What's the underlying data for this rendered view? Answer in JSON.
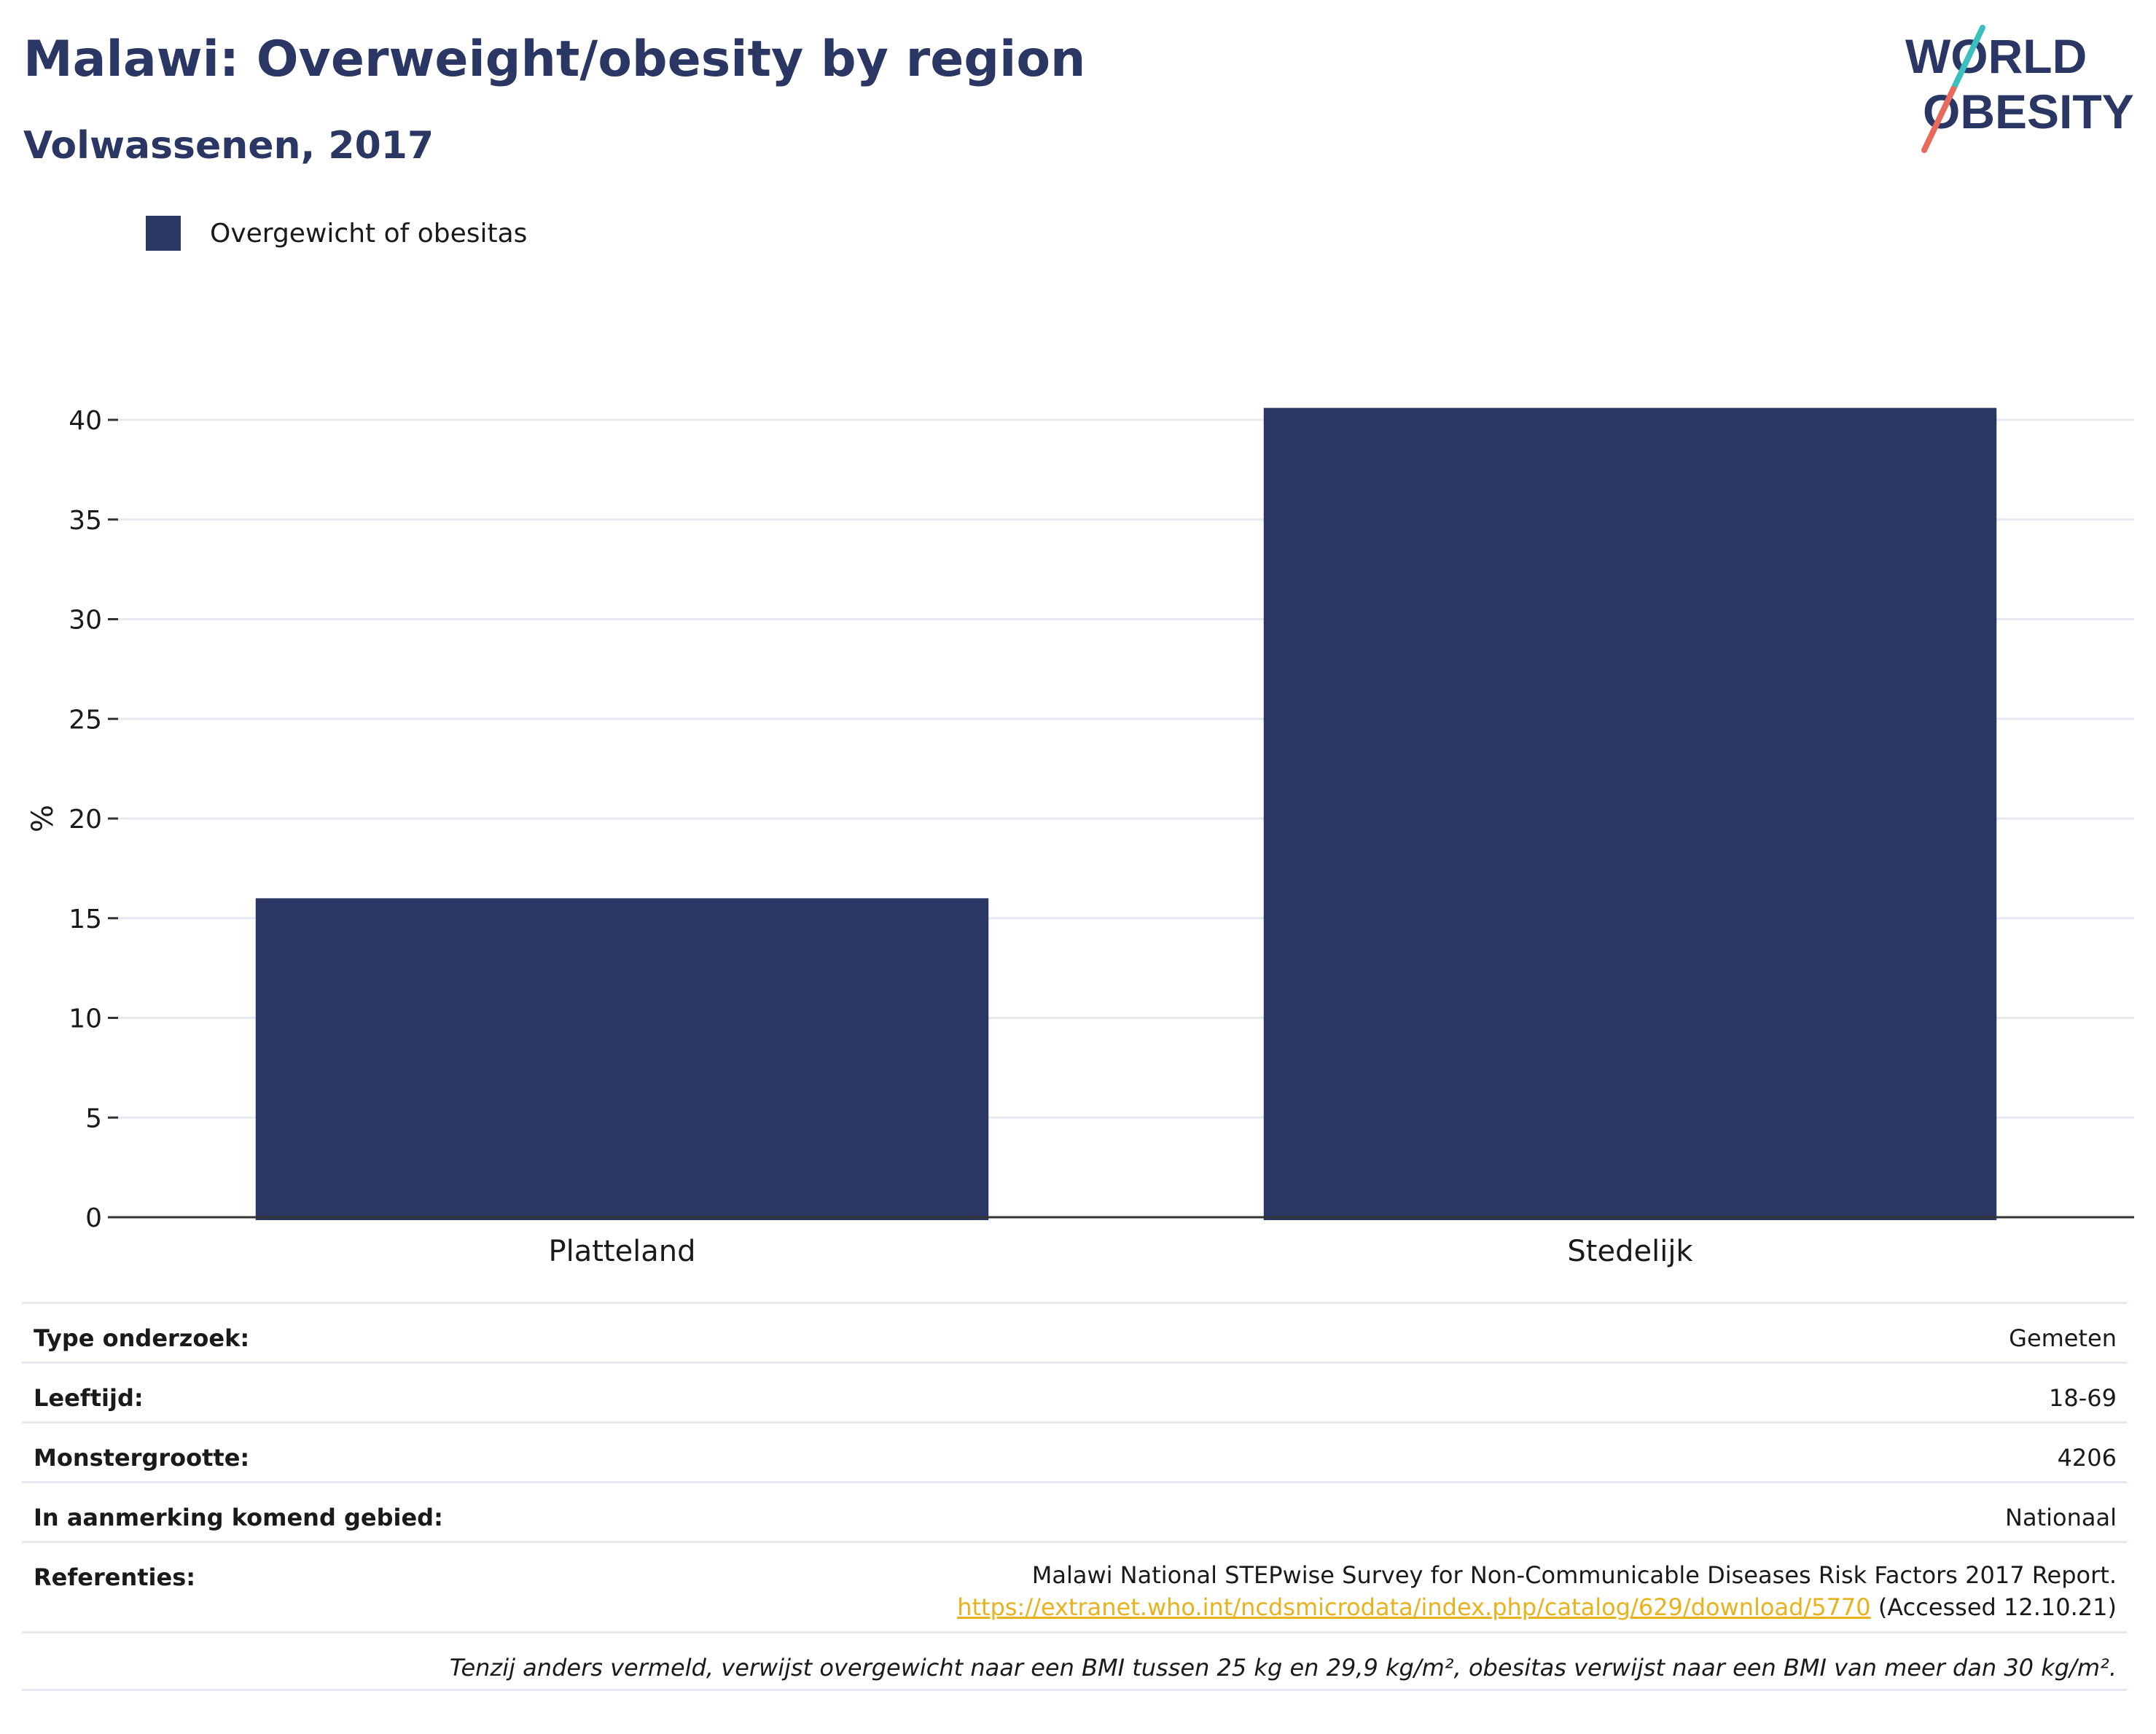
{
  "header": {
    "title": "Malawi: Overweight/obesity by region",
    "subtitle": "Volwassenen, 2017"
  },
  "logo": {
    "line1": "WORLD",
    "line2": "OBESITY"
  },
  "colors": {
    "bar": "#2a3663",
    "title": "#2a3663",
    "link": "#e8b21e",
    "grid": "#e6eaf0",
    "logo_teal": "#3bbfbf",
    "logo_coral": "#e86a5a"
  },
  "chart_data": {
    "type": "bar",
    "categories": [
      "Platteland",
      "Stedelijk"
    ],
    "series": [
      {
        "name": "Overgewicht of obesitas",
        "values": [
          16.0,
          40.6
        ]
      }
    ],
    "ylabel": "%",
    "xlabel": "",
    "ylim": [
      0,
      42
    ],
    "yticks": [
      0,
      5,
      10,
      15,
      20,
      25,
      30,
      35,
      40
    ],
    "grid": true,
    "legend": "top-left"
  },
  "info": {
    "rows": [
      {
        "key": "Type onderzoek:",
        "value": "Gemeten"
      },
      {
        "key": "Leeftijd:",
        "value": "18-69"
      },
      {
        "key": "Monstergrootte:",
        "value": "4206"
      },
      {
        "key": "In aanmerking komend gebied:",
        "value": "Nationaal"
      }
    ],
    "references": {
      "key": "Referenties:",
      "text": "Malawi National STEPwise Survey for Non-Communicable Diseases Risk Factors 2017 Report.",
      "link": "https://extranet.who.int/ncdsmicrodata/index.php/catalog/629/download/5770",
      "accessed": " (Accessed 12.10.21)"
    },
    "footnote": "Tenzij anders vermeld, verwijst overgewicht naar een BMI tussen 25 kg en 29,9 kg/m², obesitas verwijst naar een BMI van meer dan 30 kg/m²."
  }
}
